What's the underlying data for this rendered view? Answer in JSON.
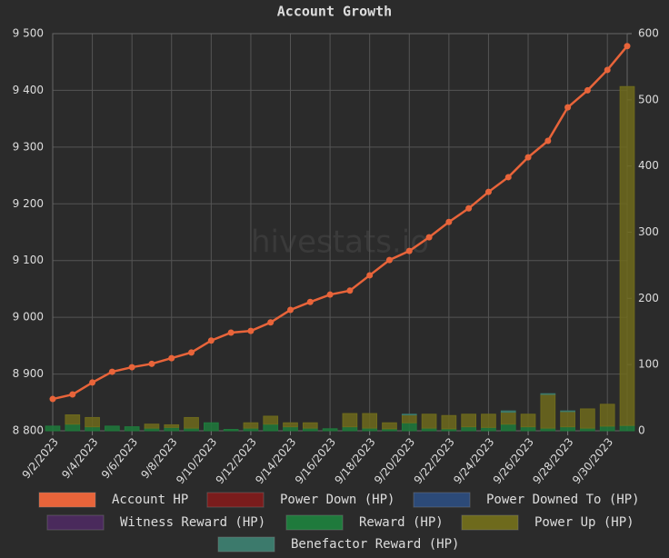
{
  "chart_data": {
    "type": "bar-line",
    "title": "Account Growth",
    "watermark": "hivestats.io",
    "categories": [
      "9/2/2023",
      null,
      "9/4/2023",
      null,
      "9/6/2023",
      null,
      "9/8/2023",
      null,
      "9/10/2023",
      null,
      "9/12/2023",
      null,
      "9/14/2023",
      null,
      "9/16/2023",
      null,
      "9/18/2023",
      null,
      "9/20/2023",
      null,
      "9/22/2023",
      null,
      "9/24/2023",
      null,
      "9/26/2023",
      null,
      "9/28/2023",
      null,
      "9/30/2023",
      null
    ],
    "ylim": [
      8800,
      9500
    ],
    "yticks": [
      {
        "value": 8800,
        "label": "8 800"
      },
      {
        "value": 8900,
        "label": "8 900"
      },
      {
        "value": 9000,
        "label": "9 000"
      },
      {
        "value": 9100,
        "label": "9 100"
      },
      {
        "value": 9200,
        "label": "9 200"
      },
      {
        "value": 9300,
        "label": "9 300"
      },
      {
        "value": 9400,
        "label": "9 400"
      },
      {
        "value": 9500,
        "label": "9 500"
      }
    ],
    "y2lim": [
      0,
      600
    ],
    "y2ticks": [
      0,
      100,
      200,
      300,
      400,
      500,
      600
    ],
    "grid": true,
    "series": [
      {
        "name": "Account HP",
        "type": "line",
        "axis": "y",
        "color": "#e8643a",
        "values": [
          8856,
          8864,
          8885,
          8904,
          8912,
          8918,
          8928,
          8938,
          8959,
          8973,
          8976,
          8991,
          9013,
          9027,
          9040,
          9047,
          9074,
          9101,
          9117,
          9141,
          9168,
          9192,
          9221,
          9247,
          9282,
          9311,
          9370,
          9400,
          9436,
          9478
        ]
      },
      {
        "name": "Power Down (HP)",
        "type": "bar",
        "axis": "y2",
        "color": "#7a1c1c",
        "values": [
          0,
          0,
          0,
          0,
          0,
          0,
          0,
          0,
          0,
          0,
          0,
          0,
          0,
          0,
          0,
          0,
          0,
          0,
          0,
          0,
          0,
          0,
          0,
          0,
          0,
          0,
          0,
          0,
          0,
          0
        ]
      },
      {
        "name": "Power Downed To (HP)",
        "type": "bar",
        "axis": "y2",
        "color": "#2c4a78",
        "values": [
          0,
          0,
          0,
          0,
          0,
          0,
          0,
          0,
          0,
          0,
          0,
          0,
          0,
          0,
          0,
          0,
          0,
          0,
          0,
          0,
          0,
          0,
          0,
          0,
          0,
          0,
          0,
          0,
          0,
          0
        ]
      },
      {
        "name": "Witness Reward (HP)",
        "type": "bar",
        "axis": "y2",
        "color": "#4a2a5c",
        "values": [
          0,
          0,
          0,
          0,
          0,
          0,
          0,
          0,
          0,
          0,
          0,
          0,
          0,
          0,
          0,
          0,
          0,
          0,
          0,
          0,
          0,
          0,
          0,
          0,
          0,
          0,
          0,
          0,
          0,
          0
        ]
      },
      {
        "name": "Reward (HP)",
        "type": "bar",
        "axis": "y2",
        "color": "#1f7a3c",
        "values": [
          7,
          10,
          6,
          7,
          6,
          4,
          5,
          4,
          12,
          2,
          4,
          10,
          6,
          4,
          3,
          6,
          4,
          3,
          12,
          4,
          3,
          6,
          5,
          10,
          6,
          4,
          6,
          4,
          7,
          8
        ]
      },
      {
        "name": "Power Up (HP)",
        "type": "bar",
        "axis": "y2",
        "color": "#6e6a1c",
        "values": [
          0,
          14,
          14,
          0,
          0,
          6,
          4,
          16,
          0,
          0,
          8,
          12,
          6,
          8,
          0,
          20,
          22,
          9,
          12,
          21,
          20,
          19,
          20,
          18,
          19,
          51,
          23,
          29,
          33,
          512
        ]
      },
      {
        "name": "Benefactor Reward (HP)",
        "type": "bar",
        "axis": "y2",
        "color": "#3c7a6c",
        "values": [
          0,
          0,
          0,
          0,
          0,
          0,
          0,
          0,
          0,
          0,
          0,
          0,
          0,
          0,
          0,
          0,
          0,
          0,
          1,
          0,
          0,
          0,
          0,
          2,
          0,
          1,
          1,
          0,
          0,
          0
        ]
      }
    ]
  }
}
